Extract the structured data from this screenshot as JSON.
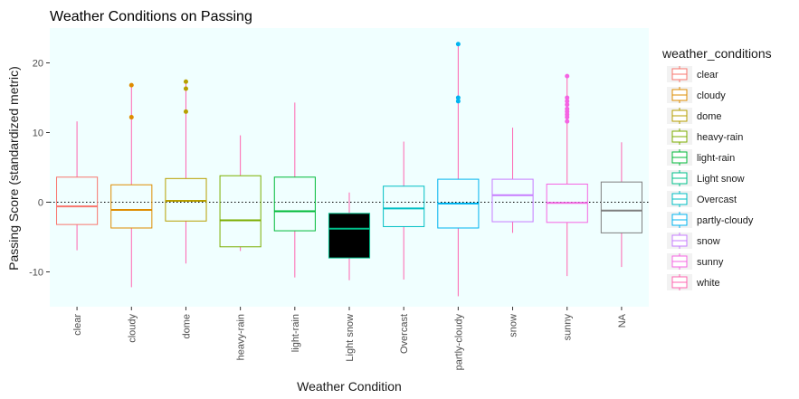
{
  "chart_data": {
    "type": "boxplot",
    "title": "Weather Conditions on Passing",
    "xlabel": "Weather Condition",
    "ylabel": "Passing Score (standardized metric)",
    "ylim": [
      -15,
      25
    ],
    "yticks": [
      -10,
      0,
      10,
      20
    ],
    "reference_line_y": 0,
    "panel_background": "#f0ffff",
    "legend": {
      "title": "weather_conditions",
      "placement": "right"
    },
    "categories": [
      "clear",
      "cloudy",
      "dome",
      "heavy-rain",
      "light-rain",
      "Light snow",
      "Overcast",
      "partly-cloudy",
      "snow",
      "sunny",
      "NA"
    ],
    "colors": [
      "#f8766d",
      "#de8c00",
      "#b79f00",
      "#7cae00",
      "#00ba38",
      "#00c08b",
      "#00bfc4",
      "#00b4f0",
      "#c77cff",
      "#f564e3",
      "#7f7f7f"
    ],
    "legend_entries": [
      {
        "label": "clear",
        "color": "#f8766d"
      },
      {
        "label": "cloudy",
        "color": "#de8c00"
      },
      {
        "label": "dome",
        "color": "#b79f00"
      },
      {
        "label": "heavy-rain",
        "color": "#7cae00"
      },
      {
        "label": "light-rain",
        "color": "#00ba38"
      },
      {
        "label": "Light snow",
        "color": "#00c08b"
      },
      {
        "label": "Overcast",
        "color": "#00bfc4"
      },
      {
        "label": "partly-cloudy",
        "color": "#00b4f0"
      },
      {
        "label": "snow",
        "color": "#c77cff"
      },
      {
        "label": "sunny",
        "color": "#f564e3"
      },
      {
        "label": "white",
        "color": "#ff64b0"
      }
    ],
    "whisker_color": "#ff64b0",
    "boxes": [
      {
        "category": "clear",
        "q1": -3.2,
        "median": -0.6,
        "q3": 3.6,
        "lower": -6.9,
        "upper": 11.6,
        "outliers": [],
        "fill": "none"
      },
      {
        "category": "cloudy",
        "q1": -3.7,
        "median": -1.1,
        "q3": 2.5,
        "lower": -12.2,
        "upper": 16.8,
        "outliers": [
          16.8,
          12.2
        ],
        "fill": "none"
      },
      {
        "category": "dome",
        "q1": -2.7,
        "median": 0.2,
        "q3": 3.4,
        "lower": -8.8,
        "upper": 17.3,
        "outliers": [
          17.3,
          16.3,
          13.0
        ],
        "fill": "none"
      },
      {
        "category": "heavy-rain",
        "q1": -6.4,
        "median": -2.6,
        "q3": 3.8,
        "lower": -7.0,
        "upper": 9.6,
        "outliers": [],
        "fill": "none"
      },
      {
        "category": "light-rain",
        "q1": -4.1,
        "median": -1.3,
        "q3": 3.6,
        "lower": -10.8,
        "upper": 14.3,
        "outliers": [],
        "fill": "none"
      },
      {
        "category": "Light snow",
        "q1": -8.0,
        "median": -3.8,
        "q3": -1.6,
        "lower": -11.2,
        "upper": 1.4,
        "outliers": [],
        "fill": "#000000"
      },
      {
        "category": "Overcast",
        "q1": -3.5,
        "median": -0.9,
        "q3": 2.3,
        "lower": -11.1,
        "upper": 8.7,
        "outliers": [],
        "fill": "none"
      },
      {
        "category": "partly-cloudy",
        "q1": -3.7,
        "median": -0.2,
        "q3": 3.3,
        "lower": -13.5,
        "upper": 22.7,
        "outliers": [
          22.7,
          15.0,
          14.5
        ],
        "fill": "none"
      },
      {
        "category": "snow",
        "q1": -2.8,
        "median": 1.0,
        "q3": 3.3,
        "lower": -4.4,
        "upper": 10.7,
        "outliers": [],
        "fill": "none"
      },
      {
        "category": "sunny",
        "q1": -2.9,
        "median": -0.1,
        "q3": 2.6,
        "lower": -10.6,
        "upper": 18.1,
        "outliers": [
          18.1,
          15.0,
          14.5,
          14.0,
          13.4,
          13.0,
          12.6,
          12.2,
          11.6
        ],
        "fill": "none"
      },
      {
        "category": "NA",
        "q1": -4.4,
        "median": -1.2,
        "q3": 2.9,
        "lower": -9.3,
        "upper": 8.6,
        "outliers": [],
        "fill": "none"
      }
    ]
  }
}
